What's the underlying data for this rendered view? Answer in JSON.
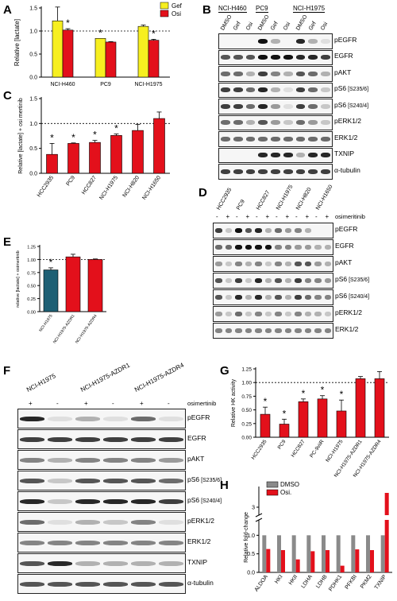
{
  "panels": {
    "A": {
      "letter": "A",
      "chart_data": {
        "type": "bar",
        "categories": [
          "NCI-H460",
          "PC9",
          "NCI-H1975"
        ],
        "series": [
          {
            "name": "Gef",
            "values": [
              1.22,
              0.84,
              1.1
            ],
            "errors": [
              0.3,
              0.0,
              0.03
            ],
            "color": "#f7ef20"
          },
          {
            "name": "Osi",
            "values": [
              1.02,
              0.76,
              0.8
            ],
            "errors": [
              0.03,
              0.01,
              0.02
            ],
            "color": "#e3101b"
          }
        ],
        "ylabel": "Relative [lactate]",
        "yticks": [
          "0.0",
          "0.5",
          "1.0",
          "1.5"
        ],
        "ylim": [
          0,
          1.5
        ],
        "reference_line": 1.0,
        "significance": [
          "",
          "*",
          "*",
          "",
          "",
          "*"
        ]
      }
    },
    "B": {
      "letter": "B",
      "cell_lines": [
        "NCI-H460",
        "PC9",
        "NCI-H1975"
      ],
      "lanes": [
        "DMSO",
        "Gef",
        "Osi",
        "DMSO",
        "Gef",
        "Osi",
        "DMSO",
        "Gef",
        "Osi"
      ],
      "rows": [
        "pEGFR",
        "EGFR",
        "pAKT",
        "pS6",
        "pS6",
        "pERK1/2",
        "ERK1/2",
        "TXNIP",
        "α-tubulin"
      ],
      "row_suffix": [
        "",
        "",
        "",
        "[S235/6]",
        "[S240/4]",
        "",
        "",
        "",
        ""
      ]
    },
    "C": {
      "letter": "C",
      "chart_data": {
        "type": "bar",
        "categories": [
          "HCC2935",
          "PC9",
          "HCC827",
          "NCI-H1975",
          "NCI-H820",
          "NCI-H1650"
        ],
        "values": [
          0.38,
          0.6,
          0.62,
          0.76,
          0.86,
          1.1
        ],
        "errors": [
          0.22,
          0.01,
          0.04,
          0.03,
          0.12,
          0.13
        ],
        "color": "#e3101b",
        "ylabel": "Relative [lactate] + osi mertinib",
        "yticks": [
          "0.0",
          "0.5",
          "1.0",
          "1.5"
        ],
        "ylim": [
          0,
          1.5
        ],
        "reference_line": 1.0,
        "significance": [
          "*",
          "*",
          "*",
          "*",
          "",
          ""
        ]
      }
    },
    "D": {
      "letter": "D",
      "cell_lines": [
        "HCC2935",
        "PC9",
        "HCC827",
        "NCI-H1975",
        "NCI-H820",
        "NCI-H1650"
      ],
      "treatment_signs": [
        "-",
        "+",
        "-",
        "+",
        "-",
        "+",
        "-",
        "+",
        "-",
        "+",
        "-",
        "+"
      ],
      "treatment": "osimeritinib",
      "rows": [
        "pEGFR",
        "EGFR",
        "pAKT",
        "pS6",
        "pS6",
        "pERK1/2",
        "ERK1/2"
      ],
      "row_suffix": [
        "",
        "",
        "",
        "[S235/6]",
        "[S240/4]",
        "",
        ""
      ]
    },
    "E": {
      "letter": "E",
      "chart_data": {
        "type": "bar",
        "categories": [
          "NCI-H1975",
          "NCI-H1975-AZDR1",
          "NCI-H1975-AZDR4"
        ],
        "values": [
          0.8,
          1.05,
          1.0
        ],
        "errors": [
          0.04,
          0.05,
          0.01
        ],
        "colors": [
          "#1d5f74",
          "#e3101b",
          "#e3101b"
        ],
        "ylabel": "relative [lactate] + osimertinib",
        "yticks": [
          "0.00",
          "0.25",
          "0.50",
          "0.75",
          "1.00",
          "1.25"
        ],
        "ylim": [
          0,
          1.25
        ],
        "reference_line": 1.0,
        "significance": [
          "*",
          "",
          ""
        ]
      }
    },
    "F": {
      "letter": "F",
      "cell_lines": [
        "NCI-H1975",
        "NCI-H1975-AZDR1",
        "NCI-H1975-AZDR4"
      ],
      "treatment_signs": [
        "+",
        "-",
        "+",
        "-",
        "+",
        "-"
      ],
      "treatment": "osimertinib",
      "rows": [
        "pEGFR",
        "EGFR",
        "pAKT",
        "pS6",
        "pS6",
        "pERK1/2",
        "ERK1/2",
        "TXNIP",
        "α-tubulin"
      ],
      "row_suffix": [
        "",
        "",
        "",
        "[S235/6]",
        "[S240/4]",
        "",
        "",
        "",
        ""
      ]
    },
    "G": {
      "letter": "G",
      "chart_data": {
        "type": "bar",
        "categories": [
          "HCC2935",
          "PC9",
          "HCC827",
          "PC-9viiR",
          "NCI-H1975",
          "NCI-H1975-AZDR1",
          "NCI-H1975-AZDR4"
        ],
        "values": [
          0.42,
          0.24,
          0.65,
          0.7,
          0.48,
          1.07,
          1.07
        ],
        "errors": [
          0.13,
          0.09,
          0.05,
          0.06,
          0.2,
          0.04,
          0.13
        ],
        "color": "#e3101b",
        "ylabel": "Relative HK activity",
        "yticks": [
          "0.00",
          "0.25",
          "0.50",
          "0.75",
          "1.00",
          "1.25"
        ],
        "ylim": [
          0,
          1.25
        ],
        "reference_line": 1.0,
        "significance": [
          "*",
          "*",
          "*",
          "*",
          "*",
          "",
          ""
        ]
      }
    },
    "H": {
      "letter": "H",
      "chart_data": {
        "type": "bar",
        "categories": [
          "ALDOA",
          "HKI",
          "HKII",
          "LDHA",
          "LDHB",
          "PDHK1",
          "PFKBI",
          "PKM2",
          "TXNIP"
        ],
        "series": [
          {
            "name": "DMSO",
            "values": [
              1,
              1,
              1,
              1,
              1,
              1,
              1,
              1,
              1
            ],
            "color": "#8a8a8a"
          },
          {
            "name": "Osi.",
            "values": [
              0.63,
              0.6,
              0.35,
              0.57,
              0.6,
              0.18,
              0.62,
              0.6,
              3.6
            ],
            "color": "#e3101b"
          }
        ],
        "ylabel": "Relative fold-change",
        "yticks": [
          "0.0",
          "0.5",
          "1.0",
          "3"
        ],
        "axis_break": true
      }
    }
  }
}
